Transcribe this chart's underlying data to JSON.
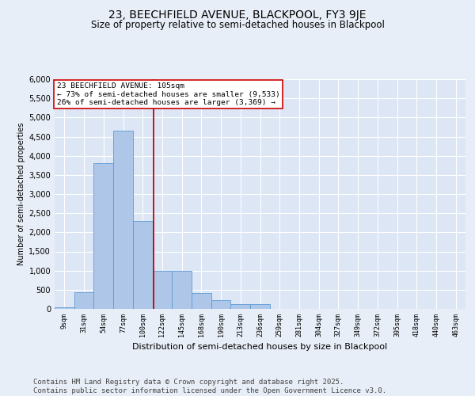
{
  "title1": "23, BEECHFIELD AVENUE, BLACKPOOL, FY3 9JE",
  "title2": "Size of property relative to semi-detached houses in Blackpool",
  "xlabel": "Distribution of semi-detached houses by size in Blackpool",
  "ylabel": "Number of semi-detached properties",
  "annotation_title": "23 BEECHFIELD AVENUE: 105sqm",
  "annotation_line1": "← 73% of semi-detached houses are smaller (9,533)",
  "annotation_line2": "26% of semi-detached houses are larger (3,369) →",
  "footer1": "Contains HM Land Registry data © Crown copyright and database right 2025.",
  "footer2": "Contains public sector information licensed under the Open Government Licence v3.0.",
  "bar_labels": [
    "9sqm",
    "31sqm",
    "54sqm",
    "77sqm",
    "100sqm",
    "122sqm",
    "145sqm",
    "168sqm",
    "190sqm",
    "213sqm",
    "236sqm",
    "259sqm",
    "281sqm",
    "304sqm",
    "327sqm",
    "349sqm",
    "372sqm",
    "395sqm",
    "418sqm",
    "440sqm",
    "463sqm"
  ],
  "bar_values": [
    50,
    430,
    3800,
    4650,
    2300,
    1000,
    1000,
    420,
    220,
    130,
    120,
    0,
    0,
    0,
    0,
    0,
    0,
    0,
    0,
    0,
    0
  ],
  "bar_color": "#aec6e8",
  "bar_edge_color": "#5b9bd5",
  "vline_x": 4.55,
  "vline_color": "#cc0000",
  "ylim": [
    0,
    6000
  ],
  "yticks": [
    0,
    500,
    1000,
    1500,
    2000,
    2500,
    3000,
    3500,
    4000,
    4500,
    5000,
    5500,
    6000
  ],
  "background_color": "#e8eef7",
  "plot_bg_color": "#dce6f5",
  "grid_color": "#ffffff",
  "title1_fontsize": 10,
  "title2_fontsize": 8.5,
  "footer_fontsize": 6.5
}
